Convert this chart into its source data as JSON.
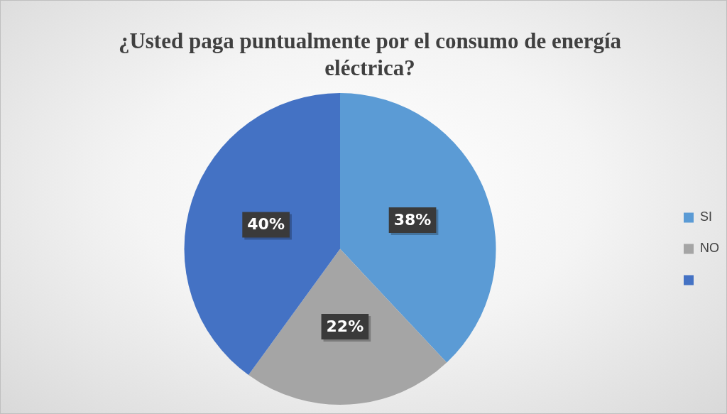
{
  "chart_data": {
    "type": "pie",
    "title": "¿Usted paga puntualmente por el consumo de energía eléctrica?",
    "categories": [
      "SI",
      "NO",
      null
    ],
    "values": [
      38,
      22,
      40
    ],
    "colors": [
      "#5b9bd5",
      "#a5a5a5",
      "#4472c4"
    ],
    "value_labels": [
      "38%",
      "22%",
      "40%"
    ],
    "legend": "right"
  }
}
